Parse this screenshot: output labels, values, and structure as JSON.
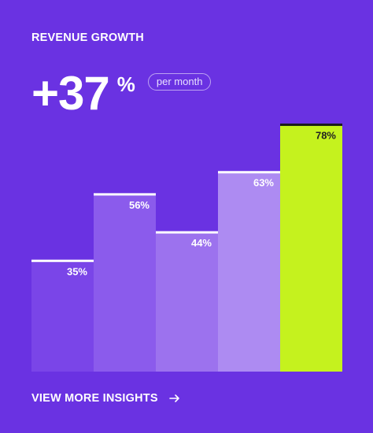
{
  "card": {
    "title": "REVENUE GROWTH",
    "kpi_value": "+37",
    "kpi_unit": "%",
    "kpi_badge": "per month",
    "footer_link": "VIEW MORE INSIGHTS",
    "footer_icon": "arrow-right-icon"
  },
  "colors": {
    "background": "#6a32e2",
    "bars": [
      "#7a45e8",
      "#8b5bec",
      "#9c72ee",
      "#ad8bf2",
      "#c5f21e"
    ],
    "highlight_bar_top": "#1a1a1a",
    "bar_top_line": "#ffffff"
  },
  "chart_data": {
    "type": "bar",
    "categories": [
      "",
      "",
      "",
      "",
      ""
    ],
    "values": [
      35,
      56,
      44,
      63,
      78
    ],
    "data_labels": [
      "35%",
      "56%",
      "44%",
      "63%",
      "78%"
    ],
    "ylim": [
      0,
      100
    ],
    "grid": false,
    "highlight_index": 4
  }
}
